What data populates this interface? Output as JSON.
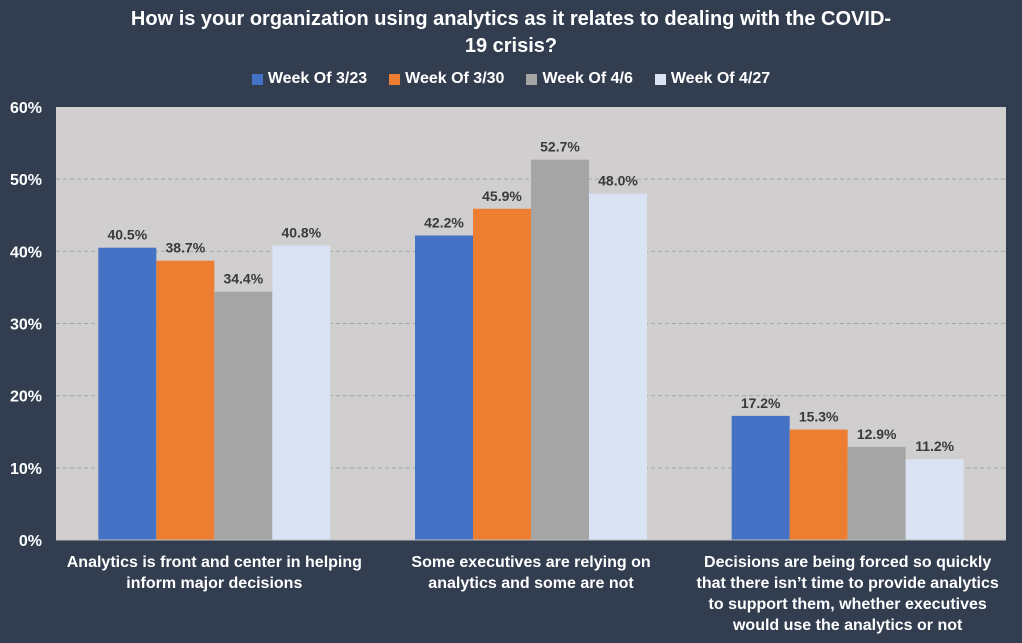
{
  "chart_data": {
    "type": "bar",
    "title": "How is your organization using analytics as it relates to dealing with the COVID-19 crisis?",
    "title_lines": [
      "How is your organization using analytics as it relates to dealing with the COVID-",
      "19 crisis?"
    ],
    "categories": [
      "Analytics is front and center in helping inform major decisions",
      "Some executives are relying on analytics and some are not",
      "Decisions are being forced so quickly that there isn’t time to provide analytics to support them, whether executives would use the analytics or not"
    ],
    "category_lines": [
      [
        "Analytics is front and center in helping",
        "inform major decisions"
      ],
      [
        "Some executives are relying on",
        "analytics and some are not"
      ],
      [
        "Decisions are being forced so quickly",
        "that there isn’t time to provide analytics",
        "to support them, whether executives",
        "would use the analytics or not"
      ]
    ],
    "series": [
      {
        "name": "Week Of 3/23",
        "color": "#4472c4",
        "values": [
          40.5,
          42.2,
          17.2
        ],
        "labels": [
          "40.5%",
          "42.2%",
          "17.2%"
        ]
      },
      {
        "name": "Week Of 3/30",
        "color": "#ed7d31",
        "values": [
          38.7,
          45.9,
          15.3
        ],
        "labels": [
          "38.7%",
          "45.9%",
          "15.3%"
        ]
      },
      {
        "name": "Week Of 4/6",
        "color": "#a5a5a5",
        "values": [
          34.4,
          52.7,
          12.9
        ],
        "labels": [
          "34.4%",
          "52.7%",
          "12.9%"
        ]
      },
      {
        "name": "Week Of 4/27",
        "color": "#dae3f3",
        "values": [
          40.8,
          48.0,
          11.2
        ],
        "labels": [
          "40.8%",
          "48.0%",
          "11.2%"
        ]
      }
    ],
    "ylim": [
      0,
      60
    ],
    "yticks": [
      0,
      10,
      20,
      30,
      40,
      50,
      60
    ],
    "ytick_labels": [
      "0%",
      "10%",
      "20%",
      "30%",
      "40%",
      "50%",
      "60%"
    ],
    "xlabel": "",
    "ylabel": "",
    "legend_position": "top",
    "grid": true
  },
  "colors": {
    "background": "#323e50",
    "plot_area": "#d0cece",
    "gridline": "#a6a6a6",
    "data_label": "#3a3a3a",
    "text": "#ffffff"
  }
}
